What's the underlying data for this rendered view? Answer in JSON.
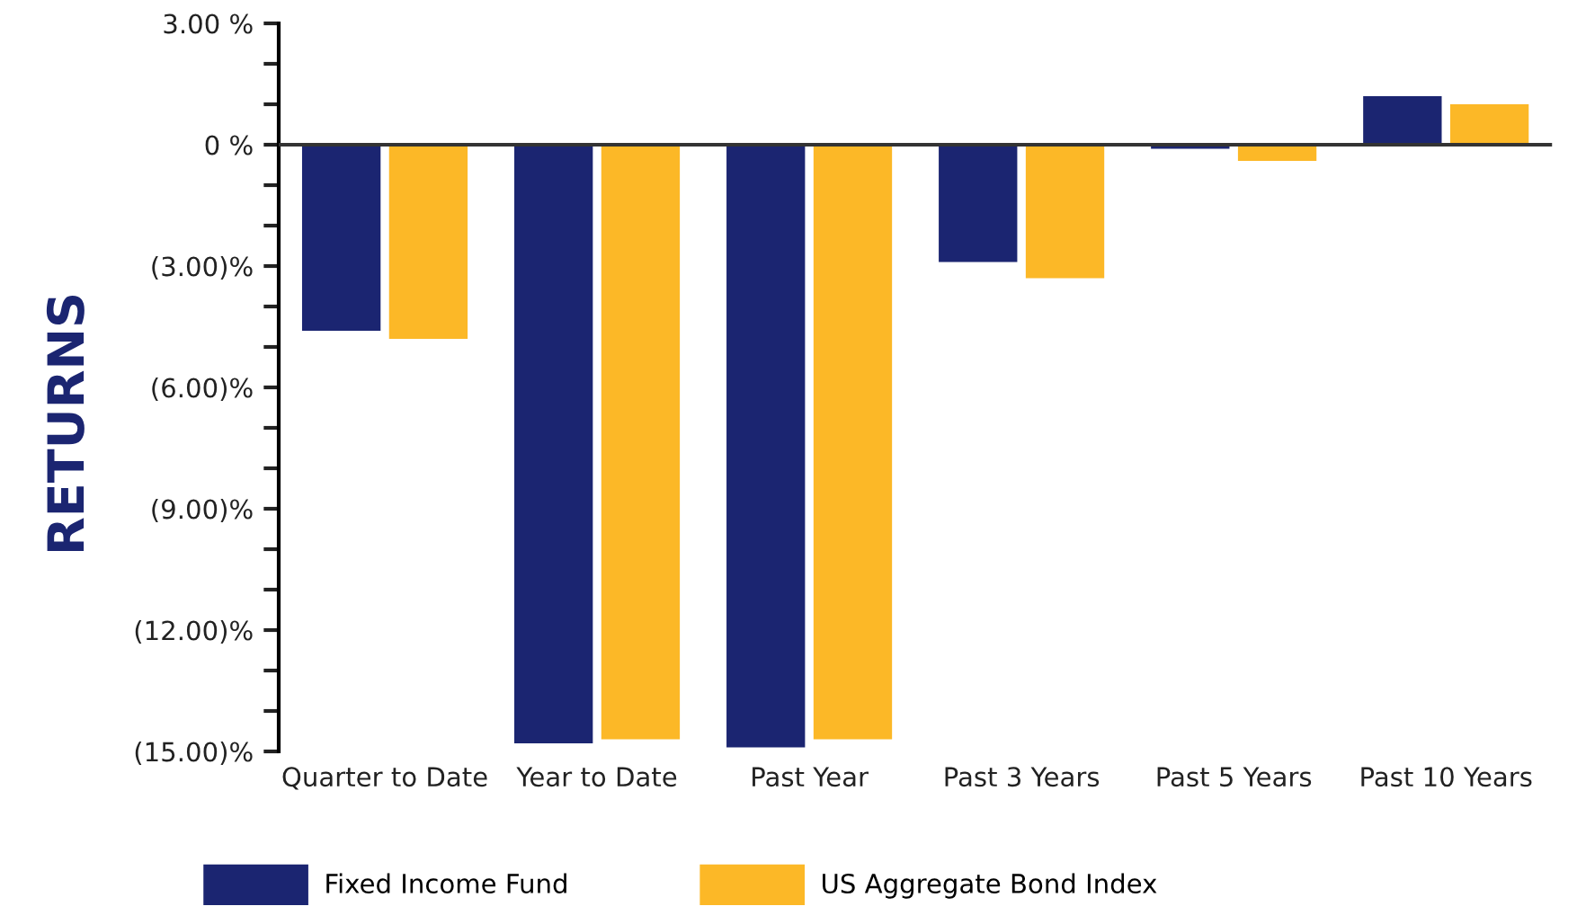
{
  "chart_data": {
    "type": "bar",
    "ylabel": "RETURNS",
    "categories": [
      "Quarter to Date",
      "Year to Date",
      "Past Year",
      "Past 3 Years",
      "Past 5 Years",
      "Past 10 Years"
    ],
    "series": [
      {
        "name": "Fixed Income Fund",
        "color": "#1b2571",
        "values": [
          -4.6,
          -14.8,
          -14.9,
          -2.9,
          -0.1,
          1.2
        ]
      },
      {
        "name": "US Aggregate Bond Index",
        "color": "#fcb827",
        "values": [
          -4.8,
          -14.7,
          -14.7,
          -3.3,
          -0.4,
          1.0
        ]
      }
    ],
    "ylim": [
      -15,
      3
    ],
    "yticks": [
      {
        "value": 3,
        "label": "3.00 %"
      },
      {
        "value": 2,
        "label": null
      },
      {
        "value": 1,
        "label": null
      },
      {
        "value": 0,
        "label": "0 %"
      },
      {
        "value": -1,
        "label": null
      },
      {
        "value": -2,
        "label": null
      },
      {
        "value": -3,
        "label": "(3.00)%"
      },
      {
        "value": -4,
        "label": null
      },
      {
        "value": -5,
        "label": null
      },
      {
        "value": -6,
        "label": "(6.00)%"
      },
      {
        "value": -7,
        "label": null
      },
      {
        "value": -8,
        "label": null
      },
      {
        "value": -9,
        "label": "(9.00)%"
      },
      {
        "value": -10,
        "label": null
      },
      {
        "value": -11,
        "label": null
      },
      {
        "value": -12,
        "label": "(12.00)%"
      },
      {
        "value": -13,
        "label": null
      },
      {
        "value": -14,
        "label": null
      },
      {
        "value": -15,
        "label": "(15.00)%"
      }
    ],
    "legend": "bottom"
  }
}
